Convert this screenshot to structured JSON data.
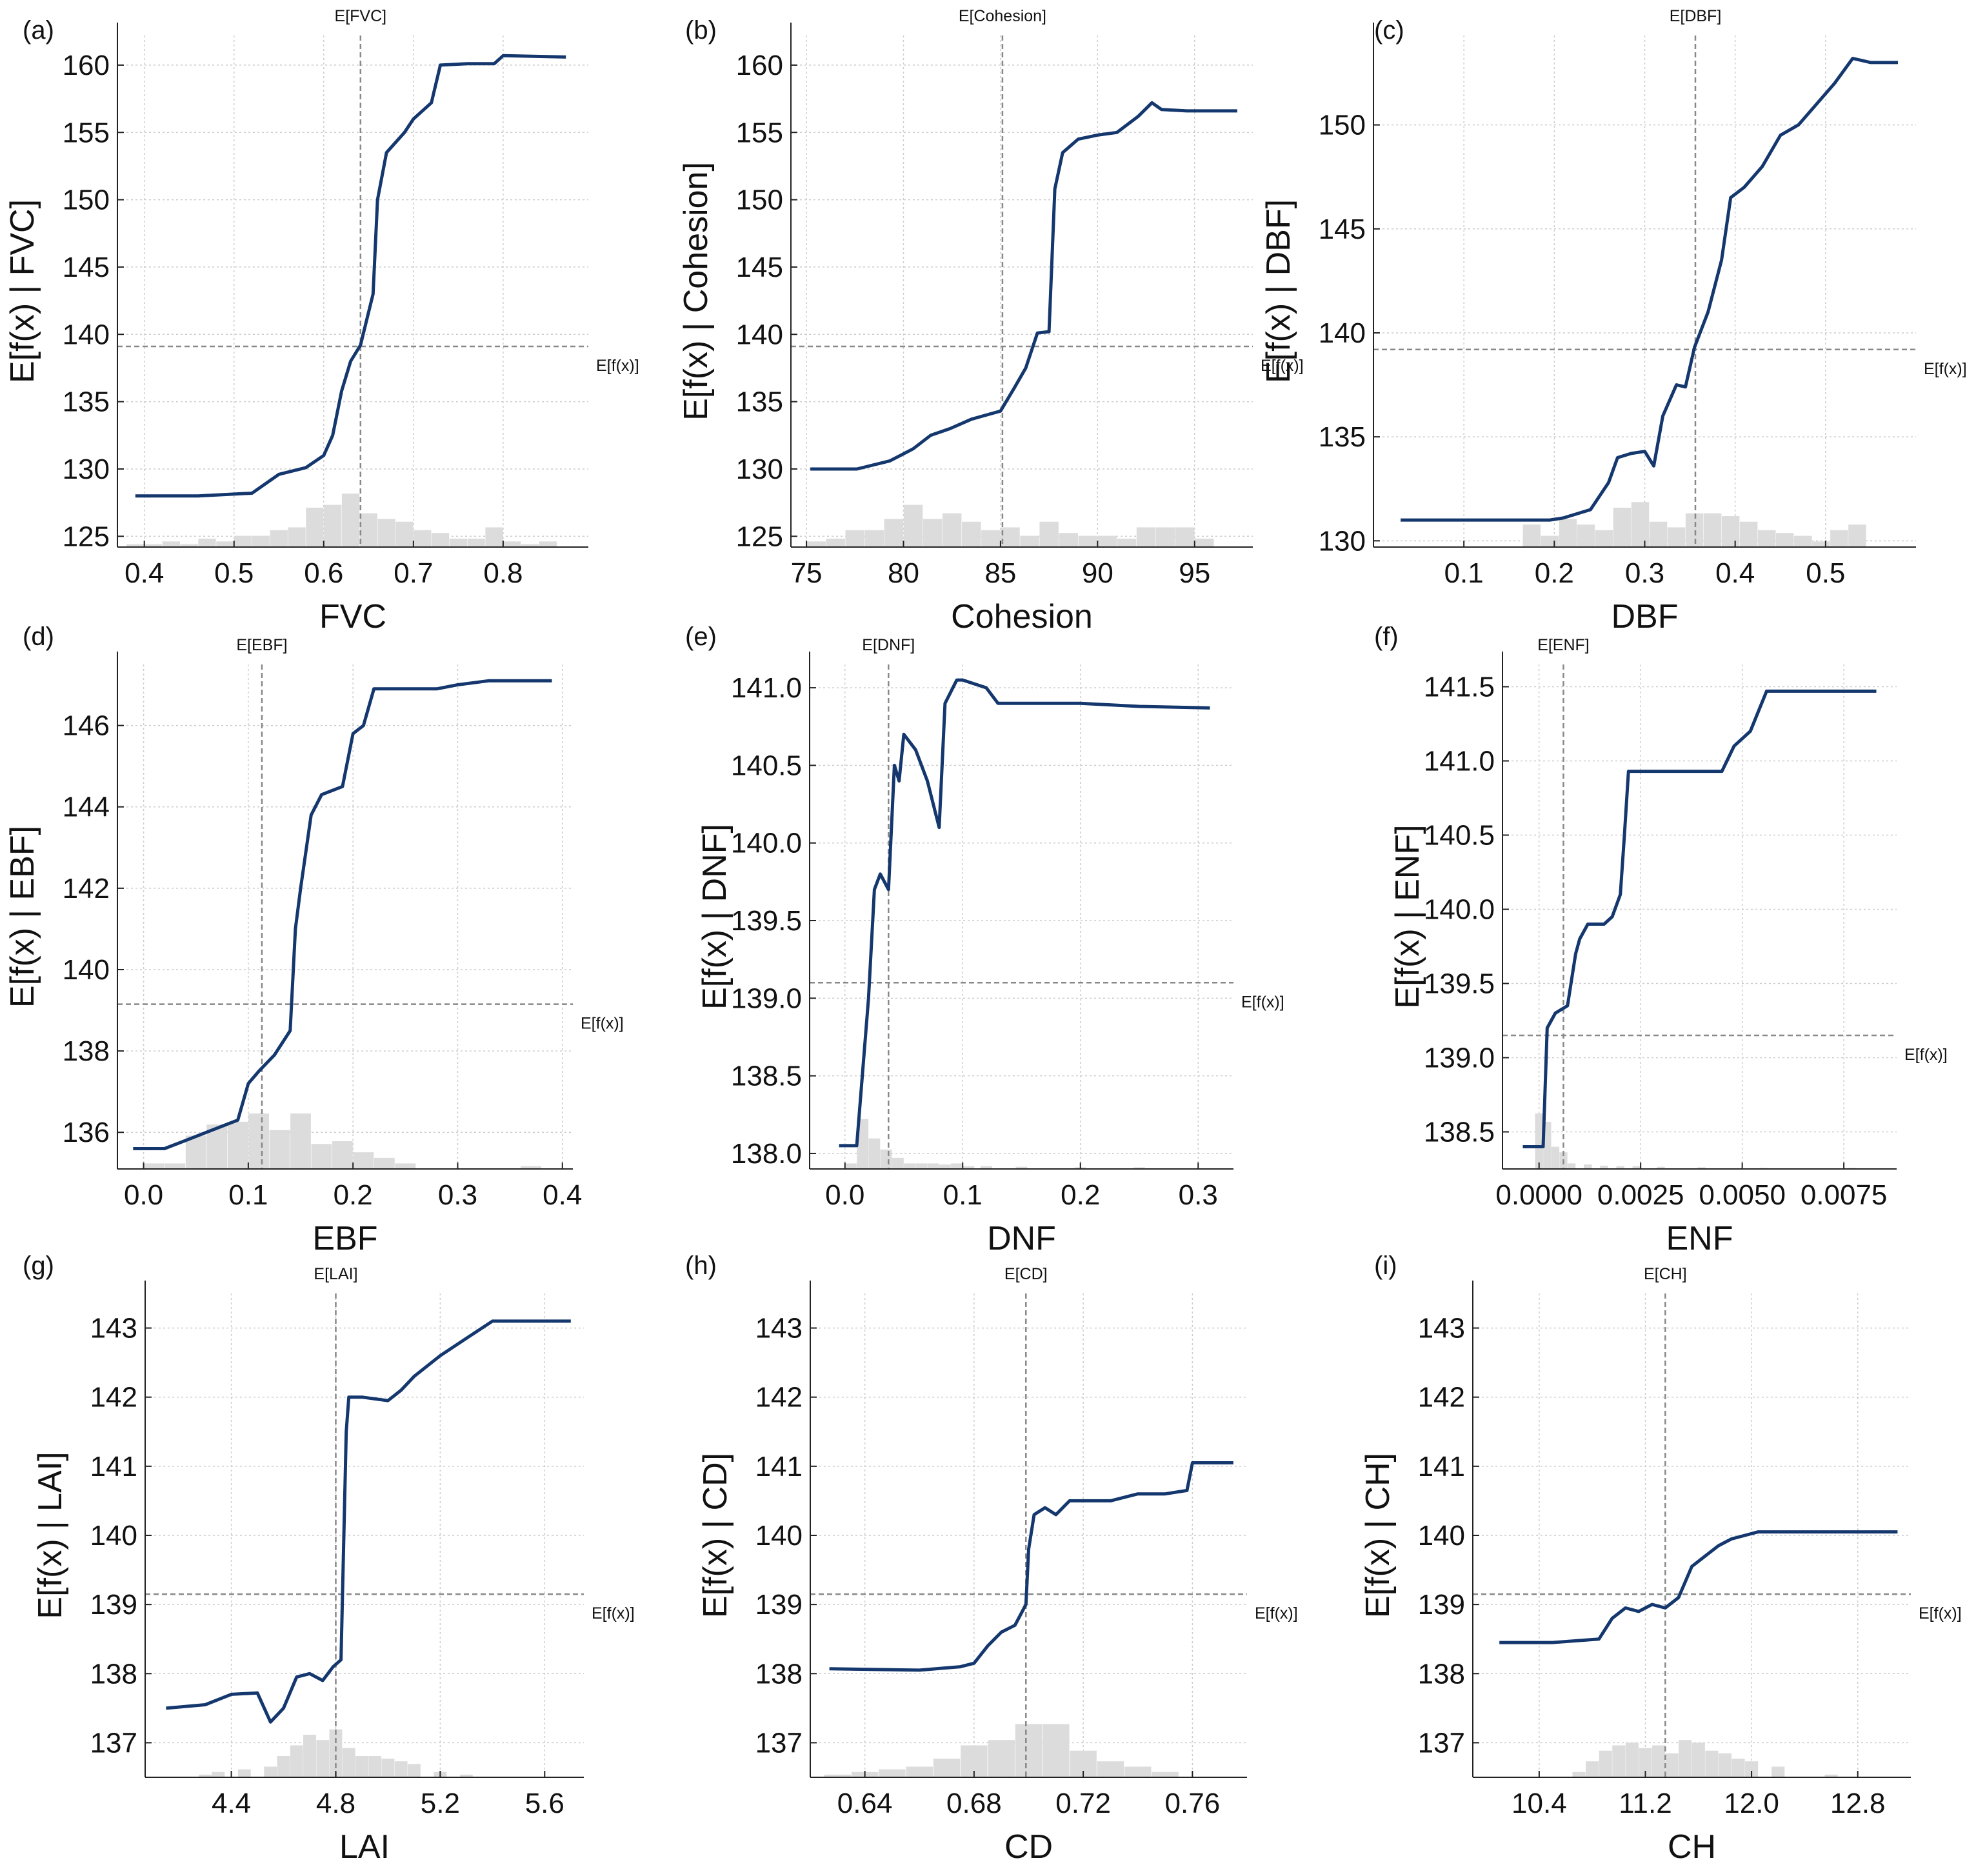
{
  "chart_data": [
    {
      "type": "line",
      "panel_label": "(a)",
      "feature": "FVC",
      "xlabel": "FVC",
      "ylabel": "E[f(x) | FVC]",
      "expected_feature_label": "E[FVC]",
      "expected_feature_value": 0.641,
      "expected_output_label": "E[f(x)]",
      "expected_output_value": 139.1,
      "xlim": [
        0.37,
        0.895
      ],
      "ylim": [
        124.2,
        162.2
      ],
      "xticks": [
        0.4,
        0.5,
        0.6,
        0.7,
        0.8
      ],
      "xtick_labels": [
        "0.4",
        "0.5",
        "0.6",
        "0.7",
        "0.8"
      ],
      "yticks": [
        125,
        130,
        135,
        140,
        145,
        150,
        155,
        160
      ],
      "ytick_labels": [
        "125",
        "130",
        "135",
        "140",
        "145",
        "150",
        "155",
        "160"
      ],
      "x": [
        0.39,
        0.46,
        0.52,
        0.55,
        0.58,
        0.6,
        0.61,
        0.62,
        0.63,
        0.641,
        0.655,
        0.66,
        0.67,
        0.69,
        0.7,
        0.72,
        0.73,
        0.76,
        0.79,
        0.8,
        0.87
      ],
      "y": [
        128.0,
        128.0,
        128.2,
        129.6,
        130.1,
        131.0,
        132.5,
        135.8,
        138.0,
        139.2,
        143.0,
        150.0,
        153.5,
        155.0,
        156.0,
        157.2,
        160.0,
        160.1,
        160.1,
        160.7,
        160.6
      ],
      "hist_x": [
        0.39,
        0.41,
        0.43,
        0.45,
        0.47,
        0.49,
        0.51,
        0.53,
        0.55,
        0.57,
        0.59,
        0.61,
        0.63,
        0.65,
        0.67,
        0.69,
        0.71,
        0.73,
        0.75,
        0.77,
        0.79,
        0.81,
        0.83,
        0.85
      ],
      "hist_v": [
        0.05,
        0.05,
        0.1,
        0.05,
        0.15,
        0.1,
        0.2,
        0.2,
        0.3,
        0.35,
        0.7,
        0.75,
        0.95,
        0.6,
        0.5,
        0.45,
        0.3,
        0.25,
        0.15,
        0.15,
        0.35,
        0.1,
        0.05,
        0.1
      ]
    },
    {
      "type": "line",
      "panel_label": "(b)",
      "feature": "Cohesion",
      "xlabel": "Cohesion",
      "ylabel": "E[f(x) | Cohesion]",
      "expected_feature_label": "E[Cohesion]",
      "expected_feature_value": 85.1,
      "expected_output_label": "E[f(x)]",
      "expected_output_value": 139.1,
      "xlim": [
        74.2,
        98.0
      ],
      "ylim": [
        124.2,
        162.2
      ],
      "xticks": [
        75,
        80,
        85,
        90,
        95
      ],
      "xtick_labels": [
        "75",
        "80",
        "85",
        "90",
        "95"
      ],
      "yticks": [
        125,
        130,
        135,
        140,
        145,
        150,
        155,
        160
      ],
      "ytick_labels": [
        "125",
        "130",
        "135",
        "140",
        "145",
        "150",
        "155",
        "160"
      ],
      "x": [
        75.2,
        77.6,
        79.3,
        80.5,
        81.4,
        82.4,
        83.5,
        85.0,
        85.7,
        86.3,
        86.9,
        87.5,
        87.8,
        88.2,
        89.0,
        90.0,
        91.0,
        92.1,
        92.8,
        93.3,
        94.6,
        97.2
      ],
      "y": [
        130.0,
        130.0,
        130.6,
        131.5,
        132.5,
        133.0,
        133.7,
        134.3,
        136.0,
        137.5,
        140.1,
        140.2,
        150.8,
        153.5,
        154.5,
        154.8,
        155.0,
        156.2,
        157.2,
        156.7,
        156.6,
        156.6
      ],
      "hist_x": [
        75.5,
        76.5,
        77.5,
        78.5,
        79.5,
        80.5,
        81.5,
        82.5,
        83.5,
        84.5,
        85.5,
        86.5,
        87.5,
        88.5,
        89.5,
        90.5,
        91.5,
        92.5,
        93.5,
        94.5,
        95.5
      ],
      "hist_v": [
        0.1,
        0.15,
        0.3,
        0.3,
        0.5,
        0.75,
        0.5,
        0.6,
        0.45,
        0.3,
        0.35,
        0.2,
        0.45,
        0.25,
        0.2,
        0.2,
        0.15,
        0.35,
        0.35,
        0.35,
        0.15
      ]
    },
    {
      "type": "line",
      "panel_label": "(c)",
      "feature": "DBF",
      "xlabel": "DBF",
      "ylabel": "E[f(x) | DBF]",
      "expected_feature_label": "E[DBF]",
      "expected_feature_value": 0.356,
      "expected_output_label": "E[f(x)]",
      "expected_output_value": 139.2,
      "xlim": [
        0.0,
        0.6
      ],
      "ylim": [
        129.7,
        154.3
      ],
      "xticks": [
        0.1,
        0.2,
        0.3,
        0.4,
        0.5
      ],
      "xtick_labels": [
        "0.1",
        "0.2",
        "0.3",
        "0.4",
        "0.5"
      ],
      "yticks": [
        130,
        135,
        140,
        145,
        150
      ],
      "ytick_labels": [
        "130",
        "135",
        "140",
        "145",
        "150"
      ],
      "x": [
        0.03,
        0.13,
        0.195,
        0.21,
        0.24,
        0.26,
        0.27,
        0.285,
        0.3,
        0.31,
        0.32,
        0.335,
        0.345,
        0.355,
        0.37,
        0.385,
        0.395,
        0.41,
        0.43,
        0.45,
        0.47,
        0.49,
        0.51,
        0.53,
        0.55,
        0.58
      ],
      "y": [
        131.0,
        131.0,
        131.0,
        131.1,
        131.5,
        132.8,
        134.0,
        134.2,
        134.3,
        133.6,
        136.0,
        137.5,
        137.4,
        139.3,
        141.0,
        143.5,
        146.5,
        147.0,
        148.0,
        149.5,
        150.0,
        151.0,
        152.0,
        153.2,
        153.0,
        153.0
      ],
      "hist_x": [
        0.175,
        0.195,
        0.215,
        0.235,
        0.255,
        0.275,
        0.295,
        0.315,
        0.335,
        0.355,
        0.375,
        0.395,
        0.415,
        0.435,
        0.455,
        0.475,
        0.495,
        0.515,
        0.535
      ],
      "hist_v": [
        0.4,
        0.2,
        0.5,
        0.4,
        0.3,
        0.7,
        0.8,
        0.45,
        0.35,
        0.6,
        0.6,
        0.55,
        0.45,
        0.3,
        0.25,
        0.2,
        0.1,
        0.3,
        0.4
      ]
    },
    {
      "type": "line",
      "panel_label": "(d)",
      "feature": "EBF",
      "xlabel": "EBF",
      "ylabel": "E[f(x) | EBF]",
      "expected_feature_label": "E[EBF]",
      "expected_feature_value": 0.113,
      "expected_output_label": "E[f(x)]",
      "expected_output_value": 139.15,
      "xlim": [
        -0.025,
        0.41
      ],
      "ylim": [
        135.1,
        147.5
      ],
      "xticks": [
        0.0,
        0.1,
        0.2,
        0.3,
        0.4
      ],
      "xtick_labels": [
        "0.0",
        "0.1",
        "0.2",
        "0.3",
        "0.4"
      ],
      "yticks": [
        136,
        138,
        140,
        142,
        144,
        146
      ],
      "ytick_labels": [
        "136",
        "138",
        "140",
        "142",
        "144",
        "146"
      ],
      "x": [
        -0.01,
        0.02,
        0.04,
        0.06,
        0.08,
        0.09,
        0.1,
        0.11,
        0.125,
        0.14,
        0.145,
        0.15,
        0.16,
        0.17,
        0.18,
        0.19,
        0.2,
        0.21,
        0.22,
        0.28,
        0.3,
        0.33,
        0.39
      ],
      "y": [
        135.6,
        135.6,
        135.8,
        136.0,
        136.2,
        136.3,
        137.2,
        137.5,
        137.9,
        138.5,
        141.0,
        142.0,
        143.8,
        144.3,
        144.4,
        144.5,
        145.8,
        146.0,
        146.9,
        146.9,
        147.0,
        147.1,
        147.1
      ],
      "hist_x": [
        0.01,
        0.03,
        0.05,
        0.07,
        0.09,
        0.11,
        0.13,
        0.15,
        0.17,
        0.19,
        0.21,
        0.23,
        0.25,
        0.37
      ],
      "hist_v": [
        0.1,
        0.1,
        0.6,
        0.8,
        0.85,
        1.0,
        0.7,
        1.0,
        0.45,
        0.5,
        0.3,
        0.2,
        0.1,
        0.05
      ]
    },
    {
      "type": "line",
      "panel_label": "(e)",
      "feature": "DNF",
      "xlabel": "DNF",
      "ylabel": "E[f(x) | DNF]",
      "expected_feature_label": "E[DNF]",
      "expected_feature_value": 0.037,
      "expected_output_label": "E[f(x)]",
      "expected_output_value": 139.1,
      "xlim": [
        -0.03,
        0.33
      ],
      "ylim": [
        137.9,
        141.15
      ],
      "xticks": [
        0.0,
        0.1,
        0.2,
        0.3
      ],
      "xtick_labels": [
        "0.0",
        "0.1",
        "0.2",
        "0.3"
      ],
      "yticks": [
        138.0,
        138.5,
        139.0,
        139.5,
        140.0,
        140.5,
        141.0
      ],
      "ytick_labels": [
        "138.0",
        "138.5",
        "139.0",
        "139.5",
        "140.0",
        "140.5",
        "141.0"
      ],
      "x": [
        -0.005,
        0.01,
        0.02,
        0.025,
        0.03,
        0.037,
        0.042,
        0.046,
        0.05,
        0.06,
        0.07,
        0.08,
        0.085,
        0.095,
        0.1,
        0.12,
        0.13,
        0.15,
        0.2,
        0.25,
        0.31
      ],
      "y": [
        138.05,
        138.05,
        139.0,
        139.7,
        139.8,
        139.7,
        140.5,
        140.4,
        140.7,
        140.6,
        140.4,
        140.1,
        140.9,
        141.05,
        141.05,
        141.0,
        140.9,
        140.9,
        140.9,
        140.88,
        140.87
      ],
      "hist_x": [
        0.005,
        0.015,
        0.025,
        0.035,
        0.045,
        0.055,
        0.065,
        0.075,
        0.085,
        0.095,
        0.105,
        0.12,
        0.15,
        0.2,
        0.25
      ],
      "hist_v": [
        0.1,
        0.9,
        0.55,
        0.35,
        0.2,
        0.1,
        0.1,
        0.1,
        0.08,
        0.1,
        0.05,
        0.05,
        0.04,
        0.03,
        0.03
      ]
    },
    {
      "type": "line",
      "panel_label": "(f)",
      "feature": "ENF",
      "xlabel": "ENF",
      "ylabel": "E[f(x) | ENF]",
      "expected_feature_label": "E[ENF]",
      "expected_feature_value": 0.0006,
      "expected_output_label": "E[f(x)]",
      "expected_output_value": 139.15,
      "xlim": [
        -0.0009,
        0.0088
      ],
      "ylim": [
        138.25,
        141.65
      ],
      "xticks": [
        0.0,
        0.0025,
        0.005,
        0.0075
      ],
      "xtick_labels": [
        "0.0000",
        "0.0025",
        "0.0050",
        "0.0075"
      ],
      "yticks": [
        138.5,
        139.0,
        139.5,
        140.0,
        140.5,
        141.0,
        141.5
      ],
      "ytick_labels": [
        "138.5",
        "139.0",
        "139.5",
        "140.0",
        "140.5",
        "141.0",
        "141.5"
      ],
      "x": [
        -0.0004,
        0.0001,
        0.0002,
        0.0004,
        0.0007,
        0.0009,
        0.001,
        0.0012,
        0.0016,
        0.0018,
        0.002,
        0.0021,
        0.0022,
        0.0026,
        0.0035,
        0.0045,
        0.0048,
        0.0052,
        0.0056,
        0.0083
      ],
      "y": [
        138.4,
        138.4,
        139.2,
        139.3,
        139.35,
        139.7,
        139.8,
        139.9,
        139.9,
        139.95,
        140.1,
        140.5,
        140.93,
        140.93,
        140.93,
        140.93,
        141.1,
        141.2,
        141.47,
        141.47
      ],
      "hist_x": [
        0.0,
        0.0002,
        0.0004,
        0.0006,
        0.0008,
        0.0012,
        0.0016,
        0.002,
        0.0024,
        0.003,
        0.004,
        0.0055,
        0.0077
      ],
      "hist_v": [
        1.0,
        0.85,
        0.4,
        0.3,
        0.1,
        0.08,
        0.06,
        0.05,
        0.05,
        0.04,
        0.03,
        0.02,
        0.02
      ]
    },
    {
      "type": "line",
      "panel_label": "(g)",
      "feature": "LAI",
      "xlabel": "LAI",
      "ylabel": "E[f(x) | LAI]",
      "expected_feature_label": "E[LAI]",
      "expected_feature_value": 4.8,
      "expected_output_label": "E[f(x)]",
      "expected_output_value": 139.15,
      "xlim": [
        4.07,
        5.75
      ],
      "ylim": [
        136.5,
        143.5
      ],
      "xticks": [
        4.4,
        4.8,
        5.2,
        5.6
      ],
      "xtick_labels": [
        "4.4",
        "4.8",
        "5.2",
        "5.6"
      ],
      "yticks": [
        137,
        138,
        139,
        140,
        141,
        142,
        143
      ],
      "ytick_labels": [
        "137",
        "138",
        "139",
        "140",
        "141",
        "142",
        "143"
      ],
      "x": [
        4.15,
        4.3,
        4.4,
        4.5,
        4.55,
        4.6,
        4.65,
        4.7,
        4.75,
        4.79,
        4.82,
        4.84,
        4.85,
        4.9,
        5.0,
        5.05,
        5.1,
        5.2,
        5.3,
        5.4,
        5.7
      ],
      "y": [
        137.5,
        137.55,
        137.7,
        137.72,
        137.3,
        137.5,
        137.95,
        138.0,
        137.9,
        138.1,
        138.2,
        141.5,
        142.0,
        142.0,
        141.95,
        142.1,
        142.3,
        142.6,
        142.85,
        143.1,
        143.1
      ],
      "hist_x": [
        4.3,
        4.35,
        4.45,
        4.55,
        4.6,
        4.65,
        4.7,
        4.75,
        4.8,
        4.85,
        4.9,
        4.95,
        5.0,
        5.05,
        5.1,
        5.2,
        5.3
      ],
      "hist_v": [
        0.05,
        0.1,
        0.15,
        0.2,
        0.4,
        0.6,
        0.8,
        0.7,
        0.9,
        0.55,
        0.4,
        0.4,
        0.35,
        0.3,
        0.25,
        0.1,
        0.05
      ]
    },
    {
      "type": "line",
      "panel_label": "(h)",
      "feature": "CD",
      "xlabel": "CD",
      "ylabel": "E[f(x) | CD]",
      "expected_feature_label": "E[CD]",
      "expected_feature_value": 0.699,
      "expected_output_label": "E[f(x)]",
      "expected_output_value": 139.15,
      "xlim": [
        0.62,
        0.78
      ],
      "ylim": [
        136.5,
        143.5
      ],
      "xticks": [
        0.64,
        0.68,
        0.72,
        0.76
      ],
      "xtick_labels": [
        "0.64",
        "0.68",
        "0.72",
        "0.76"
      ],
      "yticks": [
        137,
        138,
        139,
        140,
        141,
        142,
        143
      ],
      "ytick_labels": [
        "137",
        "138",
        "139",
        "140",
        "141",
        "142",
        "143"
      ],
      "x": [
        0.627,
        0.66,
        0.675,
        0.68,
        0.685,
        0.69,
        0.695,
        0.699,
        0.7,
        0.702,
        0.706,
        0.71,
        0.715,
        0.72,
        0.73,
        0.74,
        0.75,
        0.758,
        0.76,
        0.775
      ],
      "y": [
        138.07,
        138.05,
        138.1,
        138.15,
        138.4,
        138.6,
        138.7,
        139.0,
        139.8,
        140.3,
        140.4,
        140.3,
        140.5,
        140.5,
        140.5,
        140.6,
        140.6,
        140.65,
        141.05,
        141.05
      ],
      "hist_x": [
        0.63,
        0.64,
        0.65,
        0.66,
        0.67,
        0.68,
        0.69,
        0.7,
        0.71,
        0.72,
        0.73,
        0.74,
        0.75
      ],
      "hist_v": [
        0.05,
        0.1,
        0.15,
        0.2,
        0.35,
        0.6,
        0.7,
        1.0,
        1.0,
        0.5,
        0.3,
        0.2,
        0.1
      ]
    },
    {
      "type": "line",
      "panel_label": "(i)",
      "feature": "CH",
      "xlabel": "CH",
      "ylabel": "E[f(x) | CH]",
      "expected_feature_label": "E[CH]",
      "expected_feature_value": 11.35,
      "expected_output_label": "E[f(x)]",
      "expected_output_value": 139.15,
      "xlim": [
        9.9,
        13.2
      ],
      "ylim": [
        136.5,
        143.5
      ],
      "xticks": [
        10.4,
        11.2,
        12.0,
        12.8
      ],
      "xtick_labels": [
        "10.4",
        "11.2",
        "12.0",
        "12.8"
      ],
      "yticks": [
        137,
        138,
        139,
        140,
        141,
        142,
        143
      ],
      "ytick_labels": [
        "137",
        "138",
        "139",
        "140",
        "141",
        "142",
        "143"
      ],
      "x": [
        10.1,
        10.5,
        10.85,
        10.95,
        11.05,
        11.15,
        11.25,
        11.35,
        11.45,
        11.55,
        11.65,
        11.75,
        11.85,
        11.95,
        12.05,
        12.2,
        13.1
      ],
      "y": [
        138.45,
        138.45,
        138.5,
        138.8,
        138.95,
        138.9,
        139.0,
        138.95,
        139.1,
        139.55,
        139.7,
        139.85,
        139.95,
        140.0,
        140.05,
        140.05,
        140.05
      ],
      "hist_x": [
        10.7,
        10.8,
        10.9,
        11.0,
        11.1,
        11.2,
        11.3,
        11.4,
        11.5,
        11.6,
        11.7,
        11.8,
        11.9,
        12.0,
        12.2,
        12.6
      ],
      "hist_v": [
        0.1,
        0.3,
        0.5,
        0.6,
        0.65,
        0.55,
        0.6,
        0.45,
        0.7,
        0.65,
        0.5,
        0.45,
        0.35,
        0.3,
        0.2,
        0.05
      ]
    }
  ]
}
